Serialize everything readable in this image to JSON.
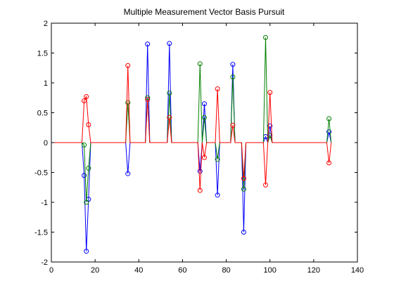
{
  "chart_data": {
    "type": "line",
    "title": "Multiple Measurement Vector Basis Pursuit",
    "x": [
      1,
      2,
      3,
      4,
      5,
      6,
      7,
      8,
      9,
      10,
      11,
      12,
      13,
      14,
      15,
      16,
      17,
      18,
      19,
      20,
      21,
      22,
      23,
      24,
      25,
      26,
      27,
      28,
      29,
      30,
      31,
      32,
      33,
      34,
      35,
      36,
      37,
      38,
      39,
      40,
      41,
      42,
      43,
      44,
      45,
      46,
      47,
      48,
      49,
      50,
      51,
      52,
      53,
      54,
      55,
      56,
      57,
      58,
      59,
      60,
      61,
      62,
      63,
      64,
      65,
      66,
      67,
      68,
      69,
      70,
      71,
      72,
      73,
      74,
      75,
      76,
      77,
      78,
      79,
      80,
      81,
      82,
      83,
      84,
      85,
      86,
      87,
      88,
      89,
      90,
      91,
      92,
      93,
      94,
      95,
      96,
      97,
      98,
      99,
      100,
      101,
      102,
      103,
      104,
      105,
      106,
      107,
      108,
      109,
      110,
      111,
      112,
      113,
      114,
      115,
      116,
      117,
      118,
      119,
      120,
      121,
      122,
      123,
      124,
      125,
      126,
      127,
      128
    ],
    "series": [
      {
        "color": "#0000ff",
        "values": [
          0,
          0,
          0,
          0,
          0,
          0,
          0,
          0,
          0,
          0,
          0,
          0,
          0,
          0,
          -0.55,
          -1.82,
          -0.95,
          0,
          0,
          0,
          0,
          0,
          0,
          0,
          0,
          0,
          0,
          0,
          0,
          0,
          0,
          0,
          0,
          0,
          -0.52,
          0,
          0,
          0,
          0,
          0,
          0,
          0,
          0,
          1.65,
          0,
          0,
          0,
          0,
          0,
          0,
          0,
          0,
          0,
          1.66,
          0,
          0,
          0,
          0,
          0,
          0,
          0,
          0,
          0,
          0,
          0,
          0,
          0,
          -0.48,
          0,
          0.65,
          0,
          0,
          0,
          0,
          0,
          -0.88,
          0,
          0,
          0,
          0,
          0,
          0,
          1.31,
          0,
          0,
          0,
          0,
          -1.5,
          0,
          0,
          0,
          0,
          0,
          0,
          0,
          0,
          0,
          0.1,
          0,
          0.28,
          0,
          0,
          0,
          0,
          0,
          0,
          0,
          0,
          0,
          0,
          0,
          0,
          0,
          0,
          0,
          0,
          0,
          0,
          0,
          0,
          0,
          0,
          0,
          0,
          0,
          0,
          0.18,
          0
        ]
      },
      {
        "color": "#008000",
        "values": [
          0,
          0,
          0,
          0,
          0,
          0,
          0,
          0,
          0,
          0,
          0,
          0,
          0,
          0,
          -0.04,
          -1.0,
          -0.43,
          0,
          0,
          0,
          0,
          0,
          0,
          0,
          0,
          0,
          0,
          0,
          0,
          0,
          0,
          0,
          0,
          0,
          0.67,
          0,
          0,
          0,
          0,
          0,
          0,
          0,
          0,
          0.75,
          0,
          0,
          0,
          0,
          0,
          0,
          0,
          0,
          0,
          0.83,
          0,
          0,
          0,
          0,
          0,
          0,
          0,
          0,
          0,
          0,
          0,
          0,
          0,
          1.32,
          0,
          0.42,
          0,
          0,
          0,
          0,
          0,
          -0.28,
          0,
          0,
          0,
          0,
          0,
          0,
          1.1,
          0,
          0,
          0,
          0,
          -0.78,
          0,
          0,
          0,
          0,
          0,
          0,
          0,
          0,
          0,
          1.76,
          0,
          0.12,
          0,
          0,
          0,
          0,
          0,
          0,
          0,
          0,
          0,
          0,
          0,
          0,
          0,
          0,
          0,
          0,
          0,
          0,
          0,
          0,
          0,
          0,
          0,
          0,
          0,
          0,
          0.4,
          0
        ]
      },
      {
        "color": "#ff0000",
        "values": [
          0,
          0,
          0,
          0,
          0,
          0,
          0,
          0,
          0,
          0,
          0,
          0,
          0,
          0,
          0.7,
          0.77,
          0.3,
          0,
          0,
          0,
          0,
          0,
          0,
          0,
          0,
          0,
          0,
          0,
          0,
          0,
          0,
          0,
          0,
          0,
          1.29,
          0,
          0,
          0,
          0,
          0,
          0,
          0,
          0,
          0.72,
          0,
          0,
          0,
          0,
          0,
          0,
          0,
          0,
          0,
          0.42,
          0,
          0,
          0,
          0,
          0,
          0,
          0,
          0,
          0,
          0,
          0,
          0,
          0,
          -0.8,
          0,
          -0.25,
          0,
          0,
          0,
          0,
          0,
          0.9,
          0,
          0,
          0,
          0,
          0,
          0,
          0.29,
          0,
          0,
          0,
          0,
          -0.6,
          0,
          0,
          0,
          0,
          0,
          0,
          0,
          0,
          0,
          -0.71,
          0,
          0.84,
          0,
          0,
          0,
          0,
          0,
          0,
          0,
          0,
          0,
          0,
          0,
          0,
          0,
          0,
          0,
          0,
          0,
          0,
          0,
          0,
          0,
          0,
          0,
          0,
          0,
          0,
          -0.34,
          0
        ]
      }
    ],
    "xlim": [
      0,
      140
    ],
    "xticks": [
      0,
      20,
      40,
      60,
      80,
      100,
      120,
      140
    ],
    "ylim": [
      -2,
      2
    ],
    "yticks": [
      -2,
      -1.5,
      -1,
      -0.5,
      0,
      0.5,
      1,
      1.5,
      2
    ]
  }
}
